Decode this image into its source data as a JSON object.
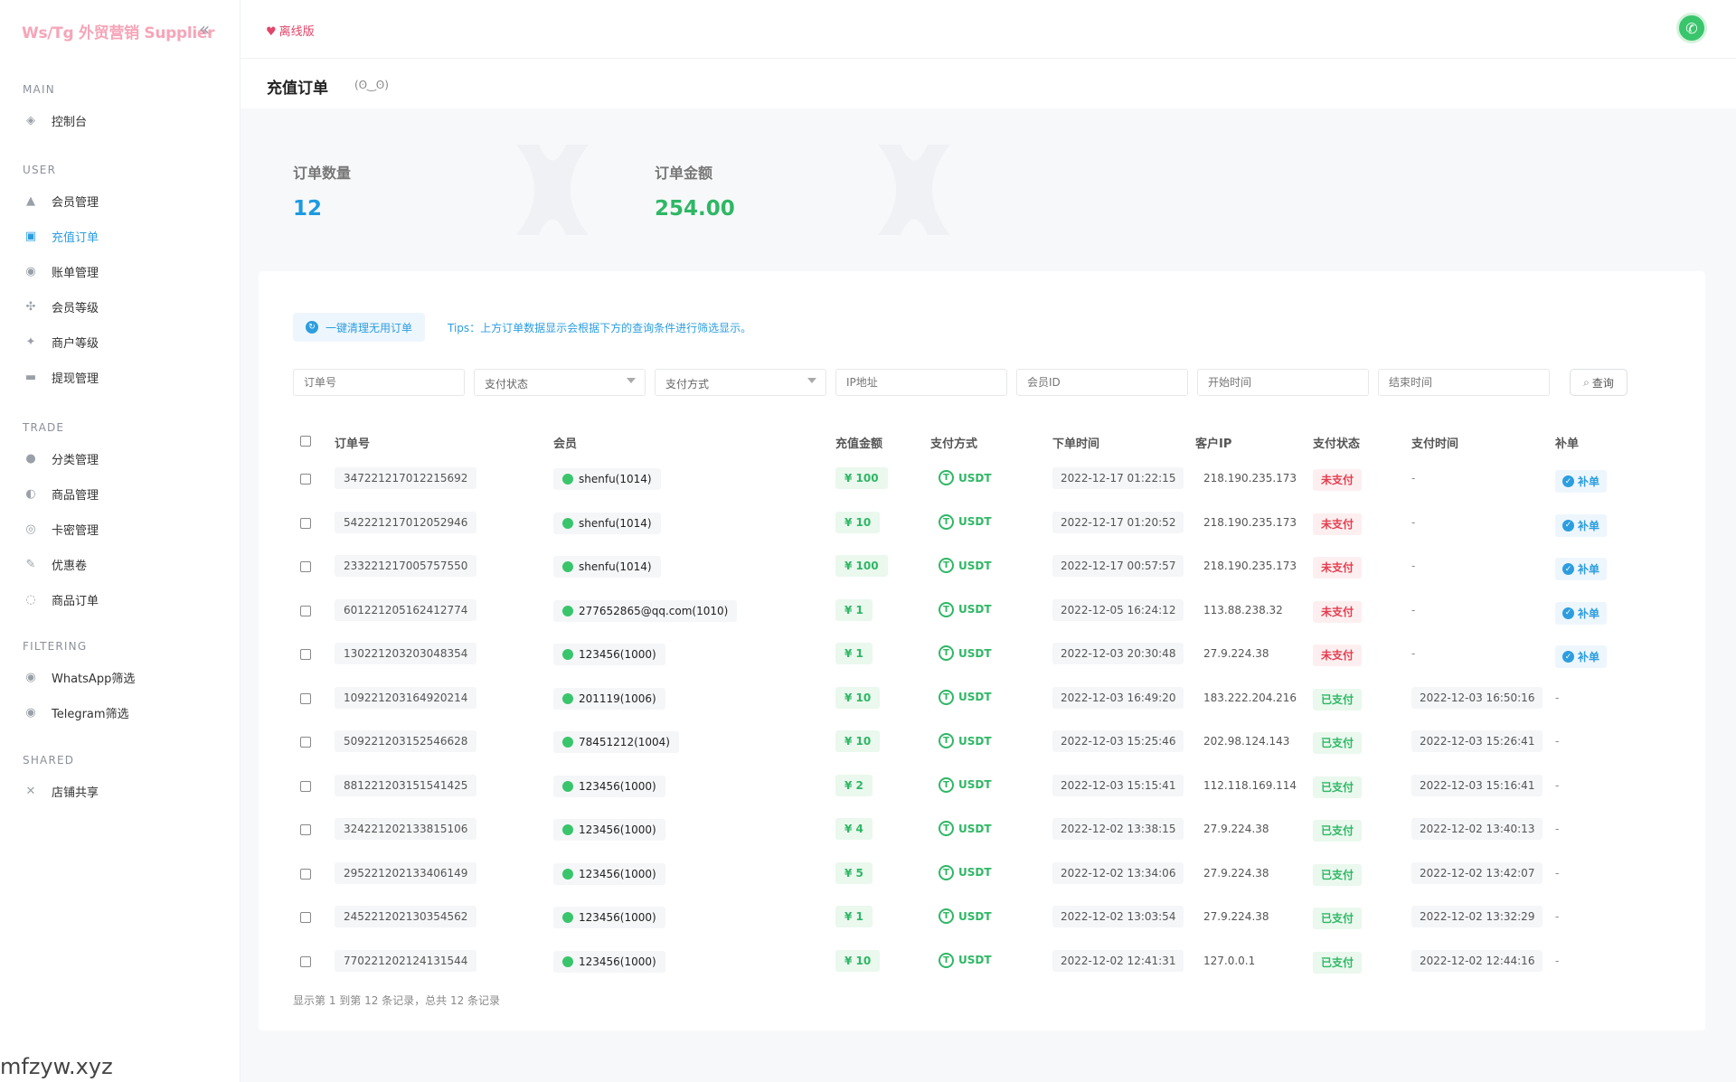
{
  "brand": "Ws/Tg 外贸营销 Supplier",
  "collapse_icon": "double-chevron-left-icon",
  "sidebar": {
    "sections": [
      {
        "title": "MAIN",
        "items": [
          {
            "label": "控制台",
            "icon": "dashboard-icon"
          }
        ]
      },
      {
        "title": "USER",
        "items": [
          {
            "label": "会员管理",
            "icon": "user-icon"
          },
          {
            "label": "充值订单",
            "icon": "recharge-icon",
            "active": true
          },
          {
            "label": "账单管理",
            "icon": "bill-icon"
          },
          {
            "label": "会员等级",
            "icon": "level-icon"
          },
          {
            "label": "商户等级",
            "icon": "merchant-icon"
          },
          {
            "label": "提现管理",
            "icon": "withdraw-icon"
          }
        ]
      },
      {
        "title": "TRADE",
        "items": [
          {
            "label": "分类管理",
            "icon": "category-icon"
          },
          {
            "label": "商品管理",
            "icon": "product-icon"
          },
          {
            "label": "卡密管理",
            "icon": "card-icon"
          },
          {
            "label": "优惠卷",
            "icon": "coupon-icon"
          },
          {
            "label": "商品订单",
            "icon": "order-icon"
          }
        ]
      },
      {
        "title": "FILTERING",
        "items": [
          {
            "label": "WhatsApp筛选",
            "icon": "whatsapp-icon"
          },
          {
            "label": "Telegram筛选",
            "icon": "telegram-icon"
          }
        ]
      },
      {
        "title": "SHARED",
        "items": [
          {
            "label": "店铺共享",
            "icon": "share-icon"
          }
        ]
      }
    ]
  },
  "topbar": {
    "offline_label": "离线版"
  },
  "page": {
    "title": "充值订单",
    "kaomoji": "(ʘ‿ʘ)"
  },
  "stats": [
    {
      "label": "订单数量",
      "value": "12",
      "color": "#1d9be0"
    },
    {
      "label": "订单金额",
      "value": "254.00",
      "color": "#2fb765"
    }
  ],
  "actions": {
    "clean_button": "一键清理无用订单",
    "tips": "Tips：上方订单数据显示会根据下方的查询条件进行筛选显示。"
  },
  "filters": {
    "order_no": "订单号",
    "pay_status": "支付状态",
    "pay_method": "支付方式",
    "ip": "IP地址",
    "member_id": "会员ID",
    "start_time": "开始时间",
    "end_time": "结束时间",
    "search": "查询"
  },
  "table": {
    "columns": [
      "订单号",
      "会员",
      "充值金额",
      "支付方式",
      "下单时间",
      "客户IP",
      "支付状态",
      "支付时间",
      "补单"
    ],
    "rows": [
      {
        "order": "347221217012215692",
        "member": "shenfu(1014)",
        "amount": "¥ 100",
        "method": "USDT",
        "created": "2022-12-17 01:22:15",
        "ip": "218.190.235.173",
        "status": "未支付",
        "paid": false,
        "paytime": "-",
        "action": "补单"
      },
      {
        "order": "542221217012052946",
        "member": "shenfu(1014)",
        "amount": "¥ 10",
        "method": "USDT",
        "created": "2022-12-17 01:20:52",
        "ip": "218.190.235.173",
        "status": "未支付",
        "paid": false,
        "paytime": "-",
        "action": "补单"
      },
      {
        "order": "233221217005757550",
        "member": "shenfu(1014)",
        "amount": "¥ 100",
        "method": "USDT",
        "created": "2022-12-17 00:57:57",
        "ip": "218.190.235.173",
        "status": "未支付",
        "paid": false,
        "paytime": "-",
        "action": "补单"
      },
      {
        "order": "601221205162412774",
        "member": "277652865@qq.com(1010)",
        "amount": "¥ 1",
        "method": "USDT",
        "created": "2022-12-05 16:24:12",
        "ip": "113.88.238.32",
        "status": "未支付",
        "paid": false,
        "paytime": "-",
        "action": "补单"
      },
      {
        "order": "130221203203048354",
        "member": "123456(1000)",
        "amount": "¥ 1",
        "method": "USDT",
        "created": "2022-12-03 20:30:48",
        "ip": "27.9.224.38",
        "status": "未支付",
        "paid": false,
        "paytime": "-",
        "action": "补单"
      },
      {
        "order": "109221203164920214",
        "member": "201119(1006)",
        "amount": "¥ 10",
        "method": "USDT",
        "created": "2022-12-03 16:49:20",
        "ip": "183.222.204.216",
        "status": "已支付",
        "paid": true,
        "paytime": "2022-12-03 16:50:16",
        "action": "-"
      },
      {
        "order": "509221203152546628",
        "member": "78451212(1004)",
        "amount": "¥ 10",
        "method": "USDT",
        "created": "2022-12-03 15:25:46",
        "ip": "202.98.124.143",
        "status": "已支付",
        "paid": true,
        "paytime": "2022-12-03 15:26:41",
        "action": "-"
      },
      {
        "order": "881221203151541425",
        "member": "123456(1000)",
        "amount": "¥ 2",
        "method": "USDT",
        "created": "2022-12-03 15:15:41",
        "ip": "112.118.169.114",
        "status": "已支付",
        "paid": true,
        "paytime": "2022-12-03 15:16:41",
        "action": "-"
      },
      {
        "order": "324221202133815106",
        "member": "123456(1000)",
        "amount": "¥ 4",
        "method": "USDT",
        "created": "2022-12-02 13:38:15",
        "ip": "27.9.224.38",
        "status": "已支付",
        "paid": true,
        "paytime": "2022-12-02 13:40:13",
        "action": "-"
      },
      {
        "order": "295221202133406149",
        "member": "123456(1000)",
        "amount": "¥ 5",
        "method": "USDT",
        "created": "2022-12-02 13:34:06",
        "ip": "27.9.224.38",
        "status": "已支付",
        "paid": true,
        "paytime": "2022-12-02 13:42:07",
        "action": "-"
      },
      {
        "order": "245221202130354562",
        "member": "123456(1000)",
        "amount": "¥ 1",
        "method": "USDT",
        "created": "2022-12-02 13:03:54",
        "ip": "27.9.224.38",
        "status": "已支付",
        "paid": true,
        "paytime": "2022-12-02 13:32:29",
        "action": "-"
      },
      {
        "order": "770221202124131544",
        "member": "123456(1000)",
        "amount": "¥ 10",
        "method": "USDT",
        "created": "2022-12-02 12:41:31",
        "ip": "127.0.0.1",
        "status": "已支付",
        "paid": true,
        "paytime": "2022-12-02 12:44:16",
        "action": "-"
      }
    ]
  },
  "pagination_text": "显示第 1 到第 12 条记录，总共 12 条记录",
  "watermark": "mfzyw.xyz"
}
